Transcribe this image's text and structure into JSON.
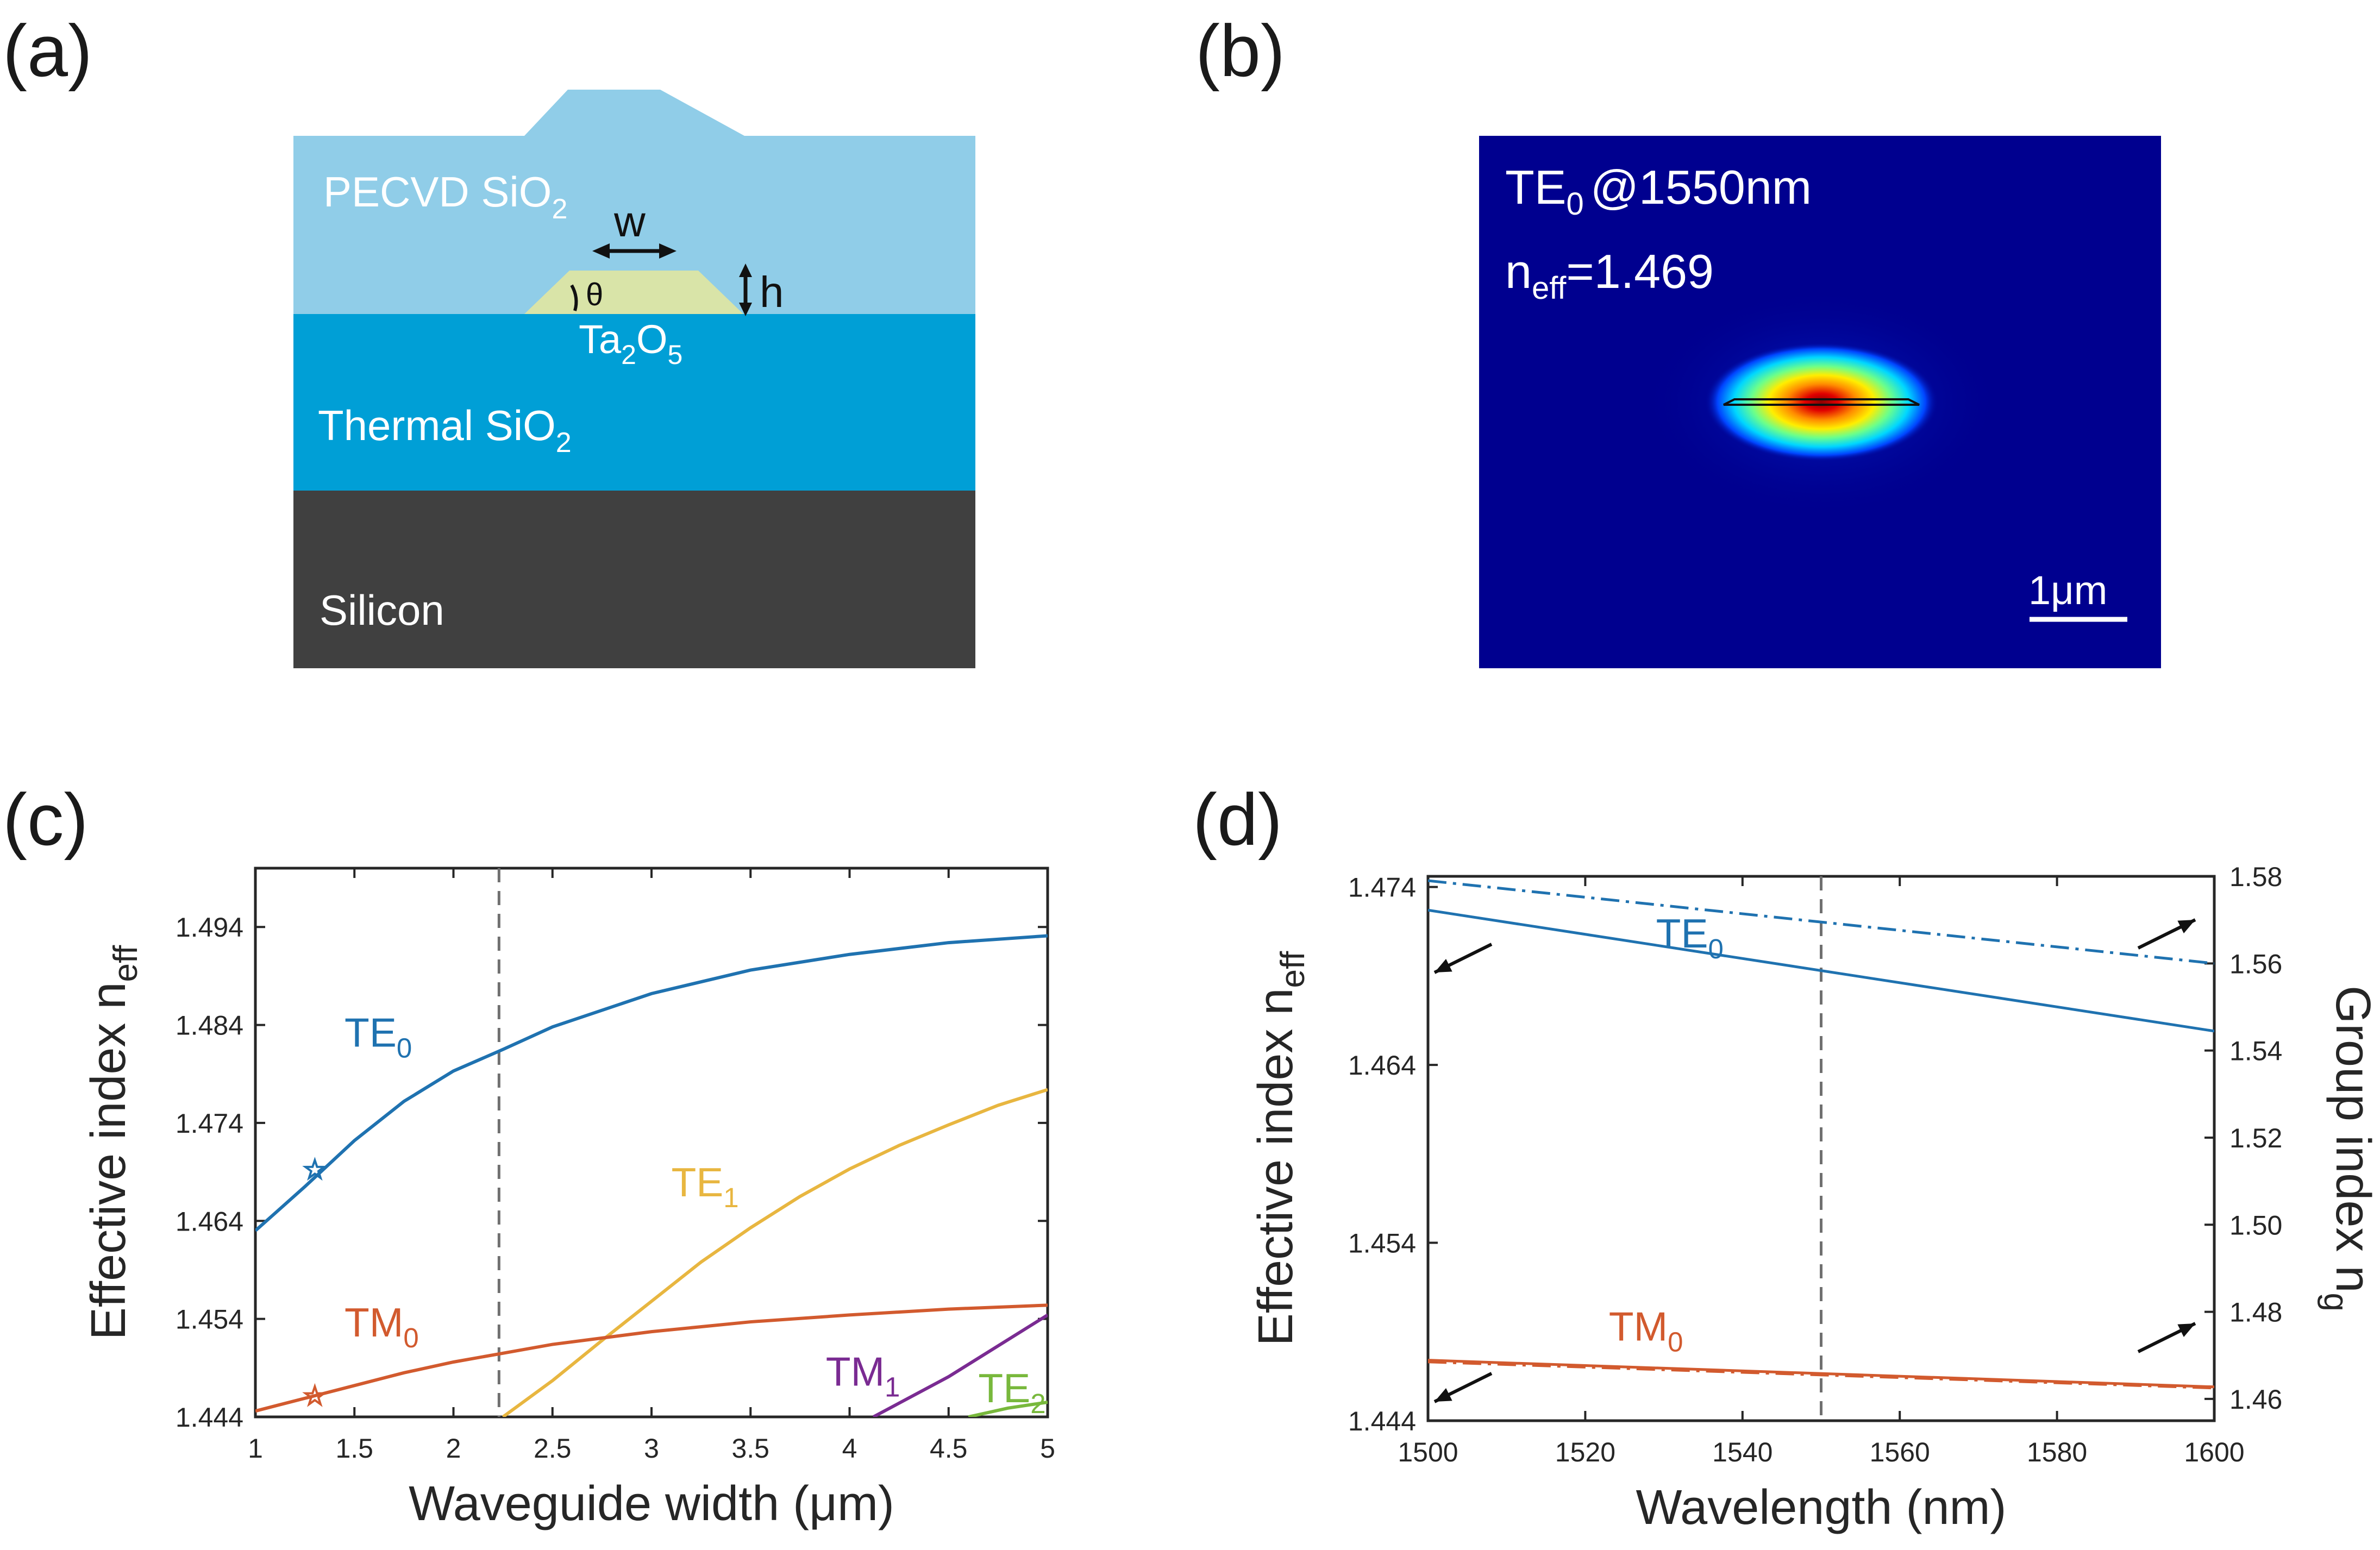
{
  "panel_labels": {
    "a": "(a)",
    "b": "(b)",
    "c": "(c)",
    "d": "(d)"
  },
  "cross_section": {
    "layers": [
      {
        "name": "PECVD SiO",
        "sub": "2",
        "color": "#90cde8"
      },
      {
        "name": "Thermal SiO",
        "sub": "2",
        "color": "#009fd6"
      },
      {
        "name": "Silicon",
        "sub": "",
        "color": "#404040"
      }
    ],
    "core": {
      "name": "Ta",
      "sub1": "2",
      "mid": "O",
      "sub2": "5",
      "color": "#d9e4a8"
    },
    "dim_labels": {
      "width": "w",
      "height": "h",
      "angle": "θ"
    }
  },
  "mode_profile": {
    "mode": "TE",
    "mode_sub": "0",
    "wavelength": "@1550nm",
    "neff_label": "n",
    "neff_sub": "eff",
    "neff_value": "=1.469",
    "scale_bar": "1μm",
    "bg_color": "#00008f"
  },
  "chart_data": [
    {
      "type": "line",
      "xlabel": "Waveguide width (μm)",
      "ylabel_main": "Effective index n",
      "ylabel_sub": "eff",
      "xlim": [
        1,
        5
      ],
      "ylim": [
        1.444,
        1.5
      ],
      "xticks": [
        "1",
        "1.5",
        "2",
        "2.5",
        "3",
        "3.5",
        "4",
        "4.5",
        "5"
      ],
      "yticks": [
        "1.444",
        "1.454",
        "1.464",
        "1.474",
        "1.484",
        "1.494"
      ],
      "vline_x": 2.23,
      "series": [
        {
          "name": "TE",
          "sub": "0",
          "color": "#1f72b0",
          "x": [
            1.0,
            1.25,
            1.5,
            1.75,
            2.0,
            2.25,
            2.5,
            3.0,
            3.5,
            4.0,
            4.5,
            5.0
          ],
          "y": [
            1.463,
            1.4675,
            1.4722,
            1.4762,
            1.4793,
            1.4815,
            1.4838,
            1.4872,
            1.4896,
            1.4912,
            1.4924,
            1.4931
          ],
          "star": {
            "x": 1.3,
            "y": 1.4692
          }
        },
        {
          "name": "TE",
          "sub": "1",
          "color": "#e8b640",
          "x": [
            2.25,
            2.5,
            2.75,
            3.0,
            3.25,
            3.5,
            3.75,
            4.0,
            4.25,
            4.5,
            4.75,
            5.0
          ],
          "y": [
            1.444,
            1.4477,
            1.4518,
            1.4558,
            1.4598,
            1.4633,
            1.4665,
            1.4693,
            1.4717,
            1.4738,
            1.4758,
            1.4774
          ]
        },
        {
          "name": "TM",
          "sub": "0",
          "color": "#d25a2e",
          "x": [
            1.0,
            1.25,
            1.5,
            1.75,
            2.0,
            2.25,
            2.5,
            3.0,
            3.5,
            4.0,
            4.5,
            5.0
          ],
          "y": [
            1.4446,
            1.4459,
            1.4472,
            1.4485,
            1.4496,
            1.4505,
            1.4514,
            1.4527,
            1.4537,
            1.4544,
            1.455,
            1.4554
          ],
          "star": {
            "x": 1.3,
            "y": 1.4461
          }
        },
        {
          "name": "TM",
          "sub": "1",
          "color": "#7a2b92",
          "x": [
            4.12,
            4.5,
            5.0
          ],
          "y": [
            1.444,
            1.4481,
            1.4544
          ]
        },
        {
          "name": "TE",
          "sub": "2",
          "color": "#78b83c",
          "x": [
            4.6,
            4.8,
            5.0
          ],
          "y": [
            1.444,
            1.4449,
            1.4455
          ]
        }
      ],
      "labels": [
        {
          "name": "TE",
          "sub": "0",
          "x": 1.45,
          "y": 1.4818,
          "color": "#1f72b0"
        },
        {
          "name": "TE",
          "sub": "1",
          "x": 3.1,
          "y": 1.4665,
          "color": "#e8b640"
        },
        {
          "name": "TM",
          "sub": "0",
          "x": 1.45,
          "y": 1.4522,
          "color": "#d25a2e"
        },
        {
          "name": "TM",
          "sub": "1",
          "x": 3.88,
          "y": 1.4472,
          "color": "#7a2b92"
        },
        {
          "name": "TE",
          "sub": "2",
          "x": 4.65,
          "y": 1.4455,
          "color": "#78b83c"
        }
      ]
    },
    {
      "type": "line",
      "xlabel": "Wavelength (nm)",
      "ylabel_main": "Effective index n",
      "ylabel_sub": "eff",
      "ylabel_right_main": "Group index n",
      "ylabel_right_sub": "g",
      "xlim": [
        1500,
        1600
      ],
      "ylim": [
        1.444,
        1.4746
      ],
      "y2lim": [
        1.455,
        1.58
      ],
      "xticks": [
        "1500",
        "1520",
        "1540",
        "1560",
        "1580",
        "1600"
      ],
      "yticks": [
        "1.444",
        "1.454",
        "1.464",
        "1.474"
      ],
      "y2ticks": [
        "1.46",
        "1.48",
        "1.50",
        "1.52",
        "1.54",
        "1.56",
        "1.58"
      ],
      "vline_x": 1550,
      "series": [
        {
          "name": "TE0 effective index",
          "axis": "left",
          "style": "solid",
          "color": "#1f72b0",
          "x": [
            1500,
            1600
          ],
          "y": [
            1.4727,
            1.4659
          ]
        },
        {
          "name": "TE0 group index",
          "axis": "right",
          "style": "dashdot",
          "color": "#1f72b0",
          "x": [
            1500,
            1600
          ],
          "y": [
            1.579,
            1.56
          ]
        },
        {
          "name": "TM0 effective index",
          "axis": "left",
          "style": "solid",
          "color": "#d25a2e",
          "x": [
            1500,
            1600
          ],
          "y": [
            1.4474,
            1.4459
          ]
        },
        {
          "name": "TM0 group index",
          "axis": "right",
          "style": "dashdot",
          "color": "#d25a2e",
          "x": [
            1500,
            1600
          ],
          "y": [
            1.4685,
            1.4625
          ]
        }
      ],
      "labels": [
        {
          "name": "TE",
          "sub": "0",
          "x": 1529,
          "y": 1.4706,
          "color": "#1f72b0"
        },
        {
          "name": "TM",
          "sub": "0",
          "x": 1523,
          "y": 1.4485,
          "color": "#d25a2e"
        }
      ]
    }
  ]
}
